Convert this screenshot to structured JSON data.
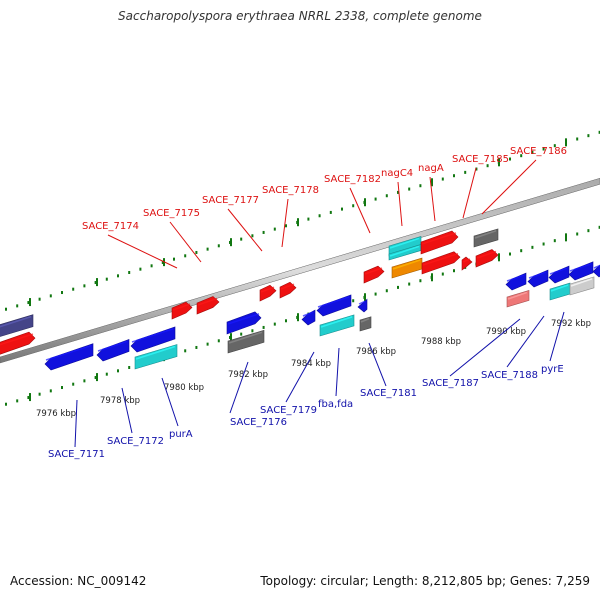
{
  "title": "Saccharopolyspora erythraea NRRL 2338, complete genome",
  "accession": "Accession: NC_009142",
  "topology": "Topology: circular; Length: 8,212,805 bp; Genes: 7,259",
  "colors": {
    "red": "#ee1111",
    "blue": "#1111dd",
    "cyan": "#22cccc",
    "gray": "#666666",
    "navy": "#444488",
    "orange": "#ee8800",
    "pink": "#ee7777",
    "light_gray": "#cccccc",
    "label_red": "#dd1111",
    "label_blue": "#1111aa",
    "tick_green": "#117711"
  },
  "scale_labels": [
    "7976 kbp",
    "7978 kbp",
    "7980 kbp",
    "7982 kbp",
    "7984 kbp",
    "7986 kbp",
    "7988 kbp",
    "7990 kbp",
    "7992 kbp"
  ],
  "upper_labels": [
    {
      "text": "SACE_7174"
    },
    {
      "text": "SACE_7175"
    },
    {
      "text": "SACE_7177"
    },
    {
      "text": "SACE_7178"
    },
    {
      "text": "SACE_7182"
    },
    {
      "text": "nagC4"
    },
    {
      "text": "nagA"
    },
    {
      "text": "SACE_7185"
    },
    {
      "text": "SACE_7186"
    }
  ],
  "lower_labels": [
    {
      "text": "SACE_7171"
    },
    {
      "text": "SACE_7172"
    },
    {
      "text": "purA"
    },
    {
      "text": "SACE_7176"
    },
    {
      "text": "SACE_7179"
    },
    {
      "text": "fba,fda"
    },
    {
      "text": "SACE_7181"
    },
    {
      "text": "SACE_7187"
    },
    {
      "text": "SACE_7188"
    },
    {
      "text": "pyrE"
    }
  ],
  "features": [
    {
      "color": "navy",
      "dir": "none"
    },
    {
      "color": "red",
      "dir": "right"
    },
    {
      "color": "blue",
      "dir": "left"
    },
    {
      "color": "blue",
      "dir": "left"
    },
    {
      "color": "blue",
      "dir": "left"
    },
    {
      "color": "cyan",
      "dir": "none"
    },
    {
      "color": "red",
      "dir": "right"
    },
    {
      "color": "red",
      "dir": "right"
    },
    {
      "color": "blue",
      "dir": "right"
    },
    {
      "color": "gray",
      "dir": "none"
    },
    {
      "color": "red",
      "dir": "right"
    },
    {
      "color": "red",
      "dir": "right"
    },
    {
      "color": "blue",
      "dir": "left"
    },
    {
      "color": "cyan",
      "dir": "none"
    },
    {
      "color": "blue",
      "dir": "left"
    },
    {
      "color": "gray",
      "dir": "none"
    },
    {
      "color": "red",
      "dir": "right"
    },
    {
      "color": "cyan",
      "dir": "none"
    },
    {
      "color": "cyan",
      "dir": "none"
    },
    {
      "color": "orange",
      "dir": "none"
    },
    {
      "color": "red",
      "dir": "right"
    },
    {
      "color": "red",
      "dir": "right"
    },
    {
      "color": "red",
      "dir": "right"
    },
    {
      "color": "gray",
      "dir": "none"
    },
    {
      "color": "blue",
      "dir": "left"
    },
    {
      "color": "blue",
      "dir": "left"
    },
    {
      "color": "blue",
      "dir": "left"
    },
    {
      "color": "blue",
      "dir": "left"
    },
    {
      "color": "pink",
      "dir": "none"
    },
    {
      "color": "cyan",
      "dir": "none"
    },
    {
      "color": "light_gray",
      "dir": "none"
    }
  ]
}
